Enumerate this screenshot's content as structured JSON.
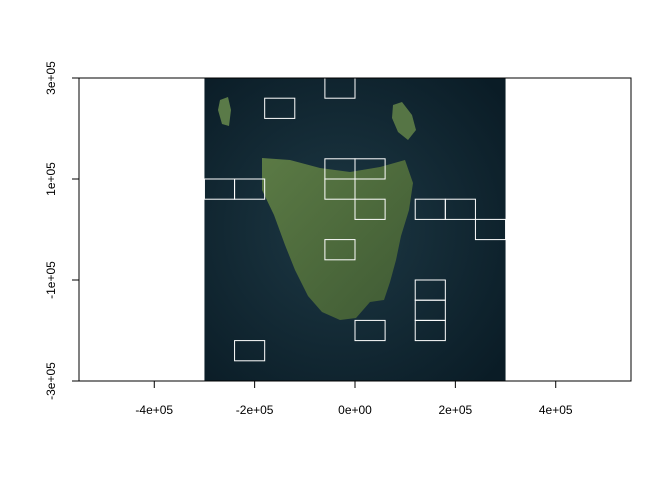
{
  "chart_data": {
    "type": "raster-boxes",
    "xlim": [
      -550000,
      550000
    ],
    "ylim": [
      -300000,
      300000
    ],
    "xticks": [
      {
        "value": -400000,
        "label": "-4e+05"
      },
      {
        "value": -200000,
        "label": "-2e+05"
      },
      {
        "value": 0,
        "label": "0e+00"
      },
      {
        "value": 200000,
        "label": "2e+05"
      },
      {
        "value": 400000,
        "label": "4e+05"
      }
    ],
    "yticks": [
      {
        "value": -300000,
        "label": "-3e+05"
      },
      {
        "value": -100000,
        "label": "-1e+05"
      },
      {
        "value": 100000,
        "label": "1e+05"
      },
      {
        "value": 300000,
        "label": "3e+05"
      }
    ],
    "raster_extent": {
      "x": [
        -300000,
        300000
      ],
      "y": [
        -300000,
        300000
      ]
    },
    "box_color": "#ffffff",
    "boxes": [
      {
        "x": [
          -60000,
          0
        ],
        "y": [
          260000,
          300000
        ]
      },
      {
        "x": [
          -180000,
          -120000
        ],
        "y": [
          220000,
          260000
        ]
      },
      {
        "x": [
          -60000,
          0
        ],
        "y": [
          100000,
          140000
        ]
      },
      {
        "x": [
          0,
          60000
        ],
        "y": [
          100000,
          140000
        ]
      },
      {
        "x": [
          -300000,
          -240000
        ],
        "y": [
          60000,
          100000
        ]
      },
      {
        "x": [
          -240000,
          -180000
        ],
        "y": [
          60000,
          100000
        ]
      },
      {
        "x": [
          -60000,
          0
        ],
        "y": [
          60000,
          100000
        ]
      },
      {
        "x": [
          0,
          60000
        ],
        "y": [
          20000,
          60000
        ]
      },
      {
        "x": [
          120000,
          180000
        ],
        "y": [
          20000,
          60000
        ]
      },
      {
        "x": [
          180000,
          240000
        ],
        "y": [
          20000,
          60000
        ]
      },
      {
        "x": [
          240000,
          300000
        ],
        "y": [
          -20000,
          20000
        ]
      },
      {
        "x": [
          -60000,
          0
        ],
        "y": [
          -60000,
          -20000
        ]
      },
      {
        "x": [
          120000,
          180000
        ],
        "y": [
          -140000,
          -100000
        ]
      },
      {
        "x": [
          120000,
          180000
        ],
        "y": [
          -180000,
          -140000
        ]
      },
      {
        "x": [
          120000,
          180000
        ],
        "y": [
          -220000,
          -180000
        ]
      },
      {
        "x": [
          0,
          60000
        ],
        "y": [
          -220000,
          -180000
        ]
      },
      {
        "x": [
          -240000,
          -180000
        ],
        "y": [
          -260000,
          -220000
        ]
      }
    ]
  }
}
